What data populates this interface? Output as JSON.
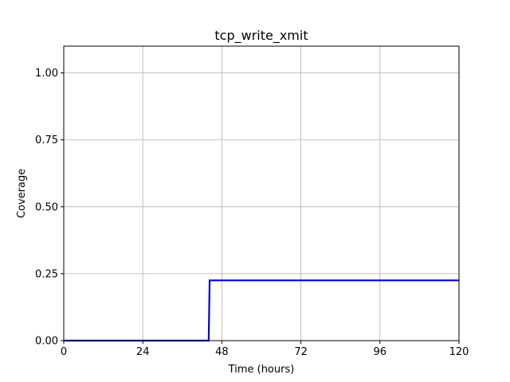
{
  "chart_data": {
    "type": "line",
    "title": "tcp_write_xmit",
    "xlabel": "Time (hours)",
    "ylabel": "Coverage",
    "xlim": [
      0,
      120
    ],
    "ylim": [
      0,
      1.1
    ],
    "xticks": [
      0,
      24,
      48,
      72,
      96,
      120
    ],
    "xtick_labels": [
      "0",
      "24",
      "48",
      "72",
      "96",
      "120"
    ],
    "yticks": [
      0,
      0.25,
      0.5,
      0.75,
      1.0
    ],
    "ytick_labels": [
      "0.00",
      "0.25",
      "0.50",
      "0.75",
      "1.00"
    ],
    "grid": true,
    "series": [
      {
        "color": "#0000dd",
        "x": [
          0,
          44,
          44.3,
          120
        ],
        "y": [
          0,
          0,
          0.225,
          0.225
        ]
      }
    ]
  }
}
